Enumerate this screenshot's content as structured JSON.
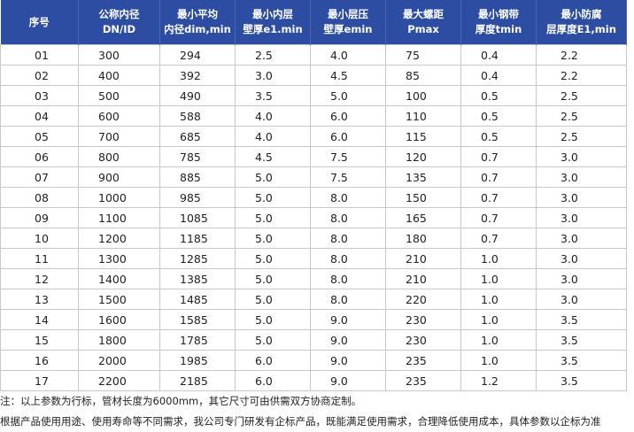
{
  "table": {
    "header": [
      [
        "序号"
      ],
      [
        "公称内径",
        "DN/ID"
      ],
      [
        "最小平均",
        "内径dim,min"
      ],
      [
        "最小内层",
        "壁厚e1.min"
      ],
      [
        "最小层压",
        "壁厚emin"
      ],
      [
        "最大螺距",
        "Pmax"
      ],
      [
        "最小钢带",
        "厚度tmin"
      ],
      [
        "最小防腐",
        "层厚度E1,min"
      ]
    ],
    "rows": [
      [
        "01",
        "300",
        "294",
        "2.5",
        "4.0",
        "75",
        "0.4",
        "2.2"
      ],
      [
        "02",
        "400",
        "392",
        "3.0",
        "4.5",
        "85",
        "0.4",
        "2.2"
      ],
      [
        "03",
        "500",
        "490",
        "3.5",
        "5.0",
        "100",
        "0.5",
        "2.5"
      ],
      [
        "04",
        "600",
        "588",
        "4.0",
        "6.0",
        "110",
        "0.5",
        "2.5"
      ],
      [
        "05",
        "700",
        "685",
        "4.0",
        "6.0",
        "115",
        "0.5",
        "2.5"
      ],
      [
        "06",
        "800",
        "785",
        "4.5",
        "7.5",
        "120",
        "0.7",
        "3.0"
      ],
      [
        "07",
        "900",
        "885",
        "5.0",
        "7.5",
        "135",
        "0.7",
        "3.0"
      ],
      [
        "08",
        "1000",
        "985",
        "5.0",
        "8.0",
        "150",
        "0.7",
        "3.0"
      ],
      [
        "09",
        "1100",
        "1085",
        "5.0",
        "8.0",
        "165",
        "0.7",
        "3.0"
      ],
      [
        "10",
        "1200",
        "1185",
        "5.0",
        "8.0",
        "180",
        "0.7",
        "3.0"
      ],
      [
        "11",
        "1300",
        "1285",
        "5.0",
        "8.0",
        "210",
        "1.0",
        "3.0"
      ],
      [
        "12",
        "1400",
        "1385",
        "5.0",
        "8.0",
        "210",
        "1.0",
        "3.0"
      ],
      [
        "13",
        "1500",
        "1485",
        "5.0",
        "8.0",
        "220",
        "1.0",
        "3.0"
      ],
      [
        "14",
        "1600",
        "1585",
        "5.0",
        "9.0",
        "230",
        "1.0",
        "3.5"
      ],
      [
        "15",
        "1800",
        "1785",
        "5.0",
        "9.0",
        "230",
        "1.0",
        "3.5"
      ],
      [
        "16",
        "2000",
        "1985",
        "6.0",
        "9.0",
        "235",
        "1.0",
        "3.5"
      ],
      [
        "17",
        "2200",
        "2185",
        "6.0",
        "9.0",
        "235",
        "1.2",
        "3.5"
      ]
    ]
  },
  "notes": [
    "注：以上参数为行标，管材长度为6000mm，其它尺寸可由供需双方协商定制。",
    "根据产品使用用途、使用寿命等不同需求，我公司专门研发有企标产品，既能满足使用需求，合理降低使用成本，具体参数以企标为准"
  ]
}
